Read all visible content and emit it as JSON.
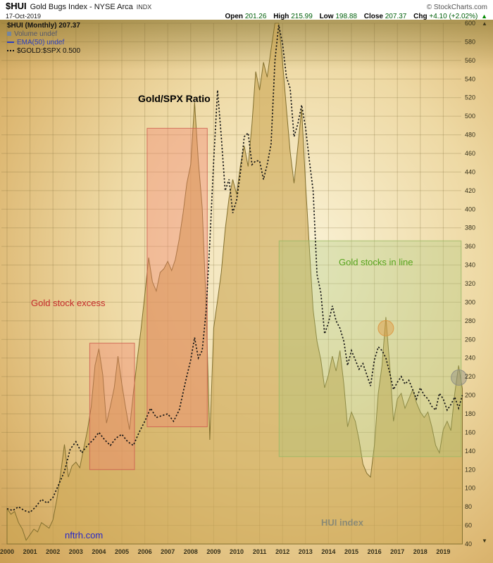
{
  "header": {
    "symbol": "$HUI",
    "name": "Gold Bugs Index - NYSE Arca",
    "exchange": "INDX",
    "copyright": "© StockCharts.com",
    "date": "17-Oct-2019",
    "quote": {
      "open_label": "Open",
      "open": "201.26",
      "high_label": "High",
      "high": "215.99",
      "low_label": "Low",
      "low": "198.88",
      "close_label": "Close",
      "close": "207.37",
      "chg_label": "Chg",
      "chg": "+4.10 (+2.02%)",
      "arrow": "▲"
    }
  },
  "legend": {
    "hui": "$HUI (Monthly) 207.37",
    "volume": "Volume undef",
    "ema": "EMA(50) undef",
    "ratio": "$GOLD:$SPX 0.500"
  },
  "chart_data": {
    "type": "area+line",
    "title": "$HUI Gold Bugs Index monthly with Gold/SPX ratio overlay",
    "x_axis": {
      "label": "year",
      "ticks": [
        2000,
        2001,
        2002,
        2003,
        2004,
        2005,
        2006,
        2007,
        2008,
        2009,
        2010,
        2011,
        2012,
        2013,
        2014,
        2015,
        2016,
        2017,
        2018,
        2019
      ]
    },
    "y_axis": {
      "min": 40,
      "max": 600,
      "step": 20,
      "side": "right",
      "arrows": {
        "up": "▲",
        "down": "▼"
      }
    },
    "series": [
      {
        "name": "HUI index",
        "type": "area",
        "color": "#cda856",
        "points": [
          [
            2000.0,
            78
          ],
          [
            2000.17,
            72
          ],
          [
            2000.33,
            75
          ],
          [
            2000.5,
            63
          ],
          [
            2000.67,
            56
          ],
          [
            2000.83,
            44
          ],
          [
            2001.0,
            50
          ],
          [
            2001.17,
            56
          ],
          [
            2001.33,
            53
          ],
          [
            2001.5,
            63
          ],
          [
            2001.67,
            60
          ],
          [
            2001.83,
            57
          ],
          [
            2002.0,
            66
          ],
          [
            2002.17,
            88
          ],
          [
            2002.33,
            115
          ],
          [
            2002.5,
            147
          ],
          [
            2002.67,
            112
          ],
          [
            2002.83,
            124
          ],
          [
            2003.0,
            128
          ],
          [
            2003.17,
            122
          ],
          [
            2003.33,
            142
          ],
          [
            2003.5,
            162
          ],
          [
            2003.67,
            188
          ],
          [
            2003.83,
            232
          ],
          [
            2004.0,
            250
          ],
          [
            2004.17,
            222
          ],
          [
            2004.33,
            170
          ],
          [
            2004.5,
            188
          ],
          [
            2004.67,
            208
          ],
          [
            2004.83,
            242
          ],
          [
            2005.0,
            212
          ],
          [
            2005.17,
            186
          ],
          [
            2005.33,
            163
          ],
          [
            2005.5,
            202
          ],
          [
            2005.67,
            238
          ],
          [
            2005.83,
            270
          ],
          [
            2006.0,
            308
          ],
          [
            2006.17,
            348
          ],
          [
            2006.33,
            322
          ],
          [
            2006.5,
            312
          ],
          [
            2006.67,
            332
          ],
          [
            2006.83,
            336
          ],
          [
            2007.0,
            344
          ],
          [
            2007.17,
            334
          ],
          [
            2007.33,
            346
          ],
          [
            2007.5,
            368
          ],
          [
            2007.67,
            396
          ],
          [
            2007.83,
            428
          ],
          [
            2008.0,
            448
          ],
          [
            2008.17,
            515
          ],
          [
            2008.33,
            452
          ],
          [
            2008.5,
            402
          ],
          [
            2008.67,
            298
          ],
          [
            2008.83,
            152
          ],
          [
            2009.0,
            272
          ],
          [
            2009.17,
            302
          ],
          [
            2009.33,
            332
          ],
          [
            2009.5,
            378
          ],
          [
            2009.67,
            412
          ],
          [
            2009.83,
            432
          ],
          [
            2010.0,
            416
          ],
          [
            2010.17,
            448
          ],
          [
            2010.33,
            468
          ],
          [
            2010.5,
            446
          ],
          [
            2010.67,
            492
          ],
          [
            2010.83,
            548
          ],
          [
            2011.0,
            528
          ],
          [
            2011.17,
            558
          ],
          [
            2011.33,
            542
          ],
          [
            2011.5,
            572
          ],
          [
            2011.67,
            630
          ],
          [
            2011.83,
            605
          ],
          [
            2012.0,
            558
          ],
          [
            2012.17,
            508
          ],
          [
            2012.33,
            462
          ],
          [
            2012.5,
            428
          ],
          [
            2012.67,
            468
          ],
          [
            2012.83,
            508
          ],
          [
            2013.0,
            428
          ],
          [
            2013.17,
            358
          ],
          [
            2013.33,
            292
          ],
          [
            2013.5,
            258
          ],
          [
            2013.67,
            238
          ],
          [
            2013.83,
            208
          ],
          [
            2014.0,
            222
          ],
          [
            2014.17,
            242
          ],
          [
            2014.33,
            226
          ],
          [
            2014.5,
            248
          ],
          [
            2014.67,
            212
          ],
          [
            2014.83,
            166
          ],
          [
            2015.0,
            182
          ],
          [
            2015.17,
            172
          ],
          [
            2015.33,
            152
          ],
          [
            2015.5,
            126
          ],
          [
            2015.67,
            116
          ],
          [
            2015.83,
            112
          ],
          [
            2016.0,
            146
          ],
          [
            2016.17,
            202
          ],
          [
            2016.33,
            232
          ],
          [
            2016.5,
            284
          ],
          [
            2016.67,
            232
          ],
          [
            2016.83,
            172
          ],
          [
            2017.0,
            196
          ],
          [
            2017.17,
            202
          ],
          [
            2017.33,
            186
          ],
          [
            2017.5,
            196
          ],
          [
            2017.67,
            206
          ],
          [
            2017.83,
            192
          ],
          [
            2018.0,
            182
          ],
          [
            2018.17,
            176
          ],
          [
            2018.33,
            182
          ],
          [
            2018.5,
            166
          ],
          [
            2018.67,
            146
          ],
          [
            2018.83,
            138
          ],
          [
            2019.0,
            163
          ],
          [
            2019.17,
            172
          ],
          [
            2019.33,
            162
          ],
          [
            2019.5,
            202
          ],
          [
            2019.67,
            232
          ],
          [
            2019.83,
            207
          ]
        ]
      },
      {
        "name": "Gold/SPX Ratio",
        "type": "dotted-line",
        "color": "#141414",
        "scale_note": "plotted on price axis, value ≈ ratio × 400; last ratio 0.500",
        "points": [
          [
            2000.0,
            78
          ],
          [
            2000.25,
            76
          ],
          [
            2000.5,
            80
          ],
          [
            2000.75,
            76
          ],
          [
            2001.0,
            74
          ],
          [
            2001.25,
            80
          ],
          [
            2001.5,
            88
          ],
          [
            2001.75,
            84
          ],
          [
            2002.0,
            90
          ],
          [
            2002.25,
            104
          ],
          [
            2002.5,
            118
          ],
          [
            2002.75,
            142
          ],
          [
            2003.0,
            150
          ],
          [
            2003.25,
            138
          ],
          [
            2003.5,
            146
          ],
          [
            2003.75,
            152
          ],
          [
            2004.0,
            160
          ],
          [
            2004.25,
            152
          ],
          [
            2004.5,
            146
          ],
          [
            2004.75,
            154
          ],
          [
            2005.0,
            158
          ],
          [
            2005.25,
            150
          ],
          [
            2005.5,
            146
          ],
          [
            2005.75,
            160
          ],
          [
            2006.0,
            172
          ],
          [
            2006.25,
            186
          ],
          [
            2006.5,
            176
          ],
          [
            2006.75,
            178
          ],
          [
            2007.0,
            180
          ],
          [
            2007.25,
            172
          ],
          [
            2007.5,
            184
          ],
          [
            2007.75,
            212
          ],
          [
            2008.0,
            238
          ],
          [
            2008.17,
            262
          ],
          [
            2008.33,
            240
          ],
          [
            2008.5,
            248
          ],
          [
            2008.67,
            290
          ],
          [
            2008.83,
            364
          ],
          [
            2009.0,
            452
          ],
          [
            2009.17,
            528
          ],
          [
            2009.33,
            478
          ],
          [
            2009.5,
            420
          ],
          [
            2009.67,
            432
          ],
          [
            2009.83,
            396
          ],
          [
            2010.0,
            410
          ],
          [
            2010.17,
            440
          ],
          [
            2010.33,
            478
          ],
          [
            2010.5,
            482
          ],
          [
            2010.67,
            448
          ],
          [
            2010.83,
            452
          ],
          [
            2011.0,
            452
          ],
          [
            2011.17,
            432
          ],
          [
            2011.33,
            448
          ],
          [
            2011.5,
            470
          ],
          [
            2011.67,
            560
          ],
          [
            2011.83,
            598
          ],
          [
            2012.0,
            578
          ],
          [
            2012.17,
            542
          ],
          [
            2012.33,
            530
          ],
          [
            2012.5,
            478
          ],
          [
            2012.67,
            492
          ],
          [
            2012.83,
            512
          ],
          [
            2013.0,
            488
          ],
          [
            2013.17,
            452
          ],
          [
            2013.33,
            420
          ],
          [
            2013.5,
            330
          ],
          [
            2013.67,
            310
          ],
          [
            2013.83,
            266
          ],
          [
            2014.0,
            278
          ],
          [
            2014.17,
            296
          ],
          [
            2014.33,
            280
          ],
          [
            2014.5,
            272
          ],
          [
            2014.67,
            258
          ],
          [
            2014.83,
            232
          ],
          [
            2015.0,
            248
          ],
          [
            2015.17,
            238
          ],
          [
            2015.33,
            228
          ],
          [
            2015.5,
            234
          ],
          [
            2015.67,
            222
          ],
          [
            2015.83,
            210
          ],
          [
            2016.0,
            238
          ],
          [
            2016.17,
            252
          ],
          [
            2016.33,
            248
          ],
          [
            2016.5,
            240
          ],
          [
            2016.67,
            224
          ],
          [
            2016.83,
            206
          ],
          [
            2017.0,
            214
          ],
          [
            2017.17,
            220
          ],
          [
            2017.33,
            212
          ],
          [
            2017.5,
            216
          ],
          [
            2017.67,
            206
          ],
          [
            2017.83,
            196
          ],
          [
            2018.0,
            208
          ],
          [
            2018.17,
            200
          ],
          [
            2018.33,
            196
          ],
          [
            2018.5,
            188
          ],
          [
            2018.67,
            184
          ],
          [
            2018.83,
            202
          ],
          [
            2019.0,
            196
          ],
          [
            2019.17,
            184
          ],
          [
            2019.33,
            190
          ],
          [
            2019.5,
            198
          ],
          [
            2019.67,
            186
          ],
          [
            2019.83,
            200
          ]
        ]
      }
    ],
    "highlight_boxes": [
      {
        "label": "Gold stock excess (2003-2005)",
        "year_from": 2003.6,
        "year_to": 2005.55,
        "val_from": 120,
        "val_to": 256,
        "fill": "#f2826e",
        "stroke": "#cc5f50",
        "opacity": 0.38
      },
      {
        "label": "Gold stock excess (2006-2008)",
        "year_from": 2006.1,
        "year_to": 2008.72,
        "val_from": 166,
        "val_to": 487,
        "fill": "#f2826e",
        "stroke": "#cc5f50",
        "opacity": 0.38
      },
      {
        "label": "Gold stocks in line (2012-2019)",
        "year_from": 2011.85,
        "year_to": 2019.78,
        "val_from": 134,
        "val_to": 366,
        "fill": "#a8c878",
        "stroke": "#9ab864",
        "opacity": 0.32
      }
    ],
    "circle_marks": [
      {
        "year": 2016.5,
        "value": 272,
        "radius": 11,
        "color": "#dd9640"
      },
      {
        "year": 2019.68,
        "value": 219,
        "radius": 11,
        "color": "#8e8e84"
      }
    ],
    "annotations": {
      "ratio_label": "Gold/SPX Ratio",
      "excess_label": "Gold stock excess",
      "inline_label": "Gold stocks in line",
      "hui_label": "HUI index",
      "watermark": "nftrh.com"
    }
  }
}
